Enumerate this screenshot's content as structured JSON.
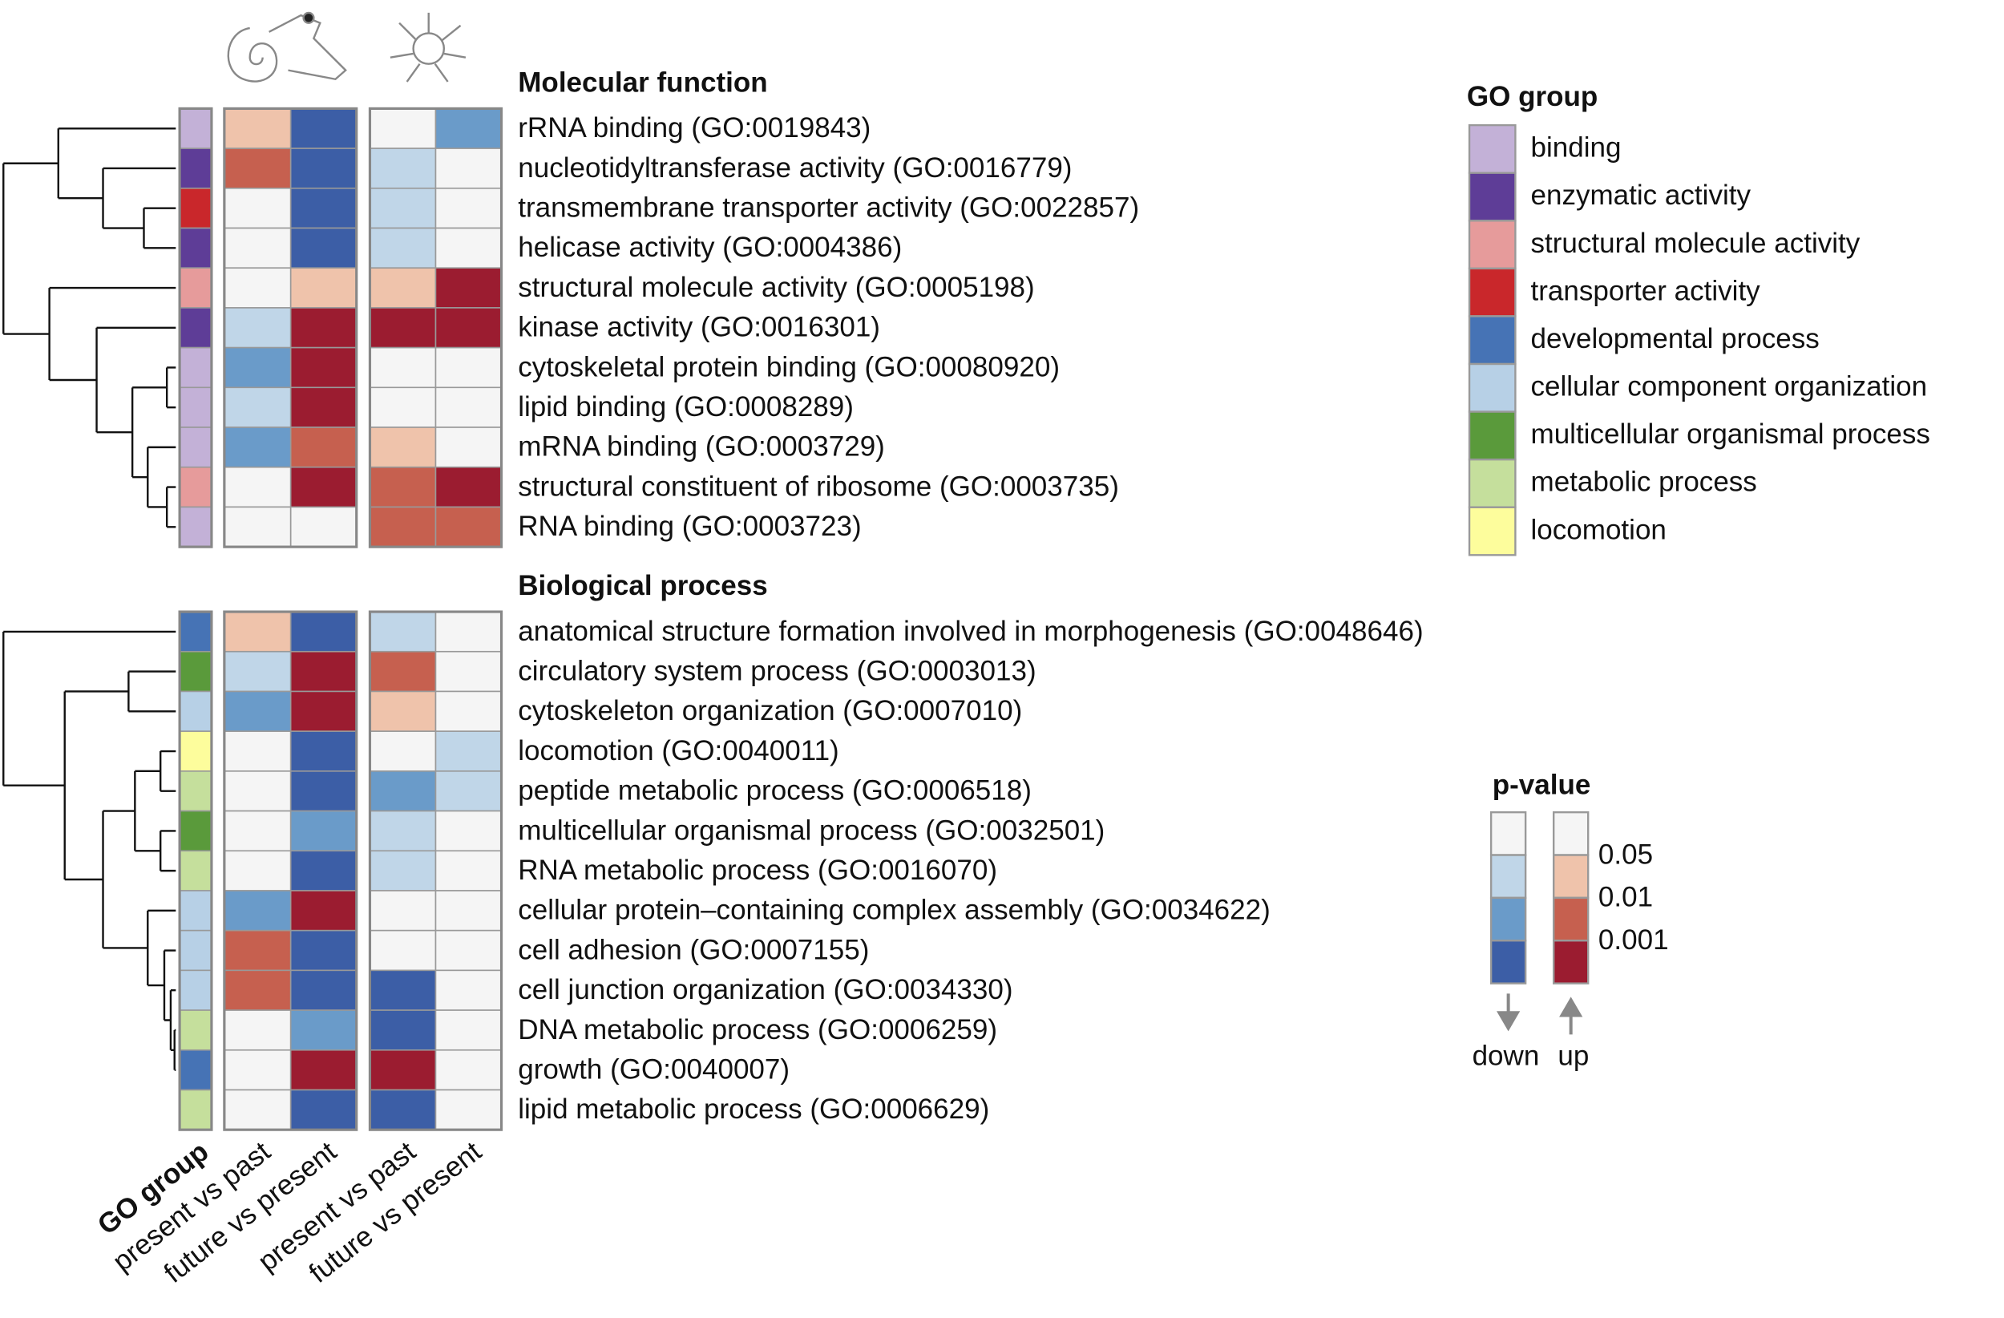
{
  "chart_data": {
    "type": "heatmap",
    "columns": [
      "GO group",
      "present vs past",
      "future vs present",
      "present vs past",
      "future vs present"
    ],
    "panels": [
      {
        "title": "Molecular function",
        "rows": [
          {
            "label": "rRNA binding (GO:0019843)",
            "group": "binding",
            "cells": [
              [
                "up",
                0.05
              ],
              [
                "down",
                0.001
              ],
              null,
              [
                "down",
                0.01
              ]
            ]
          },
          {
            "label": "nucleotidyltransferase activity (GO:0016779)",
            "group": "enzymatic activity",
            "cells": [
              [
                "up",
                0.01
              ],
              [
                "down",
                0.001
              ],
              [
                "down",
                0.05
              ],
              null
            ]
          },
          {
            "label": "transmembrane transporter activity (GO:0022857)",
            "group": "transporter activity",
            "cells": [
              null,
              [
                "down",
                0.001
              ],
              [
                "down",
                0.05
              ],
              null
            ]
          },
          {
            "label": "helicase activity (GO:0004386)",
            "group": "enzymatic activity",
            "cells": [
              null,
              [
                "down",
                0.001
              ],
              [
                "down",
                0.05
              ],
              null
            ]
          },
          {
            "label": "structural molecule activity (GO:0005198)",
            "group": "structural molecule activity",
            "cells": [
              null,
              [
                "up",
                0.05
              ],
              [
                "up",
                0.05
              ],
              [
                "up",
                0.001
              ]
            ]
          },
          {
            "label": "kinase activity (GO:0016301)",
            "group": "enzymatic activity",
            "cells": [
              [
                "down",
                0.05
              ],
              [
                "up",
                0.001
              ],
              [
                "up",
                0.001
              ],
              [
                "up",
                0.001
              ]
            ]
          },
          {
            "label": "cytoskeletal protein binding (GO:00080920)",
            "group": "binding",
            "cells": [
              [
                "down",
                0.01
              ],
              [
                "up",
                0.001
              ],
              null,
              null
            ]
          },
          {
            "label": "lipid binding (GO:0008289)",
            "group": "binding",
            "cells": [
              [
                "down",
                0.05
              ],
              [
                "up",
                0.001
              ],
              null,
              null
            ]
          },
          {
            "label": "mRNA binding (GO:0003729)",
            "group": "binding",
            "cells": [
              [
                "down",
                0.01
              ],
              [
                "up",
                0.01
              ],
              [
                "up",
                0.05
              ],
              null
            ]
          },
          {
            "label": "structural constituent of ribosome (GO:0003735)",
            "group": "structural molecule activity",
            "cells": [
              null,
              [
                "up",
                0.001
              ],
              [
                "up",
                0.01
              ],
              [
                "up",
                0.001
              ]
            ]
          },
          {
            "label": "RNA binding (GO:0003723)",
            "group": "binding",
            "cells": [
              null,
              null,
              [
                "up",
                0.01
              ],
              [
                "up",
                0.01
              ]
            ]
          }
        ]
      },
      {
        "title": "Biological process",
        "rows": [
          {
            "label": "anatomical structure formation involved in morphogenesis (GO:0048646)",
            "group": "developmental process",
            "cells": [
              [
                "up",
                0.05
              ],
              [
                "down",
                0.001
              ],
              [
                "down",
                0.05
              ],
              null
            ]
          },
          {
            "label": "circulatory system process (GO:0003013)",
            "group": "multicellular organismal process",
            "cells": [
              [
                "down",
                0.05
              ],
              [
                "up",
                0.001
              ],
              [
                "up",
                0.01
              ],
              null
            ]
          },
          {
            "label": "cytoskeleton organization (GO:0007010)",
            "group": "cellular component organization",
            "cells": [
              [
                "down",
                0.01
              ],
              [
                "up",
                0.001
              ],
              [
                "up",
                0.05
              ],
              null
            ]
          },
          {
            "label": "locomotion (GO:0040011)",
            "group": "locomotion",
            "cells": [
              null,
              [
                "down",
                0.001
              ],
              null,
              [
                "down",
                0.05
              ]
            ]
          },
          {
            "label": "peptide metabolic process (GO:0006518)",
            "group": "metabolic process",
            "cells": [
              null,
              [
                "down",
                0.001
              ],
              [
                "down",
                0.01
              ],
              [
                "down",
                0.05
              ]
            ]
          },
          {
            "label": "multicellular organismal process (GO:0032501)",
            "group": "multicellular organismal process",
            "cells": [
              null,
              [
                "down",
                0.01
              ],
              [
                "down",
                0.05
              ],
              null
            ]
          },
          {
            "label": "RNA metabolic process (GO:0016070)",
            "group": "metabolic process",
            "cells": [
              null,
              [
                "down",
                0.001
              ],
              [
                "down",
                0.05
              ],
              null
            ]
          },
          {
            "label": "cellular protein–containing complex assembly (GO:0034622)",
            "group": "cellular component organization",
            "cells": [
              [
                "down",
                0.01
              ],
              [
                "up",
                0.001
              ],
              null,
              null
            ]
          },
          {
            "label": "cell adhesion (GO:0007155)",
            "group": "cellular component organization",
            "cells": [
              [
                "up",
                0.01
              ],
              [
                "down",
                0.001
              ],
              null,
              null
            ]
          },
          {
            "label": "cell junction organization (GO:0034330)",
            "group": "cellular component organization",
            "cells": [
              [
                "up",
                0.01
              ],
              [
                "down",
                0.001
              ],
              [
                "down",
                0.001
              ],
              null
            ]
          },
          {
            "label": "DNA metabolic process (GO:0006259)",
            "group": "metabolic process",
            "cells": [
              null,
              [
                "down",
                0.01
              ],
              [
                "down",
                0.001
              ],
              null
            ]
          },
          {
            "label": "growth (GO:0040007)",
            "group": "developmental process",
            "cells": [
              null,
              [
                "up",
                0.001
              ],
              [
                "up",
                0.001
              ],
              null
            ]
          },
          {
            "label": "lipid metabolic process (GO:0006629)",
            "group": "metabolic process",
            "cells": [
              null,
              [
                "down",
                0.001
              ],
              [
                "down",
                0.001
              ],
              null
            ]
          }
        ]
      }
    ],
    "group_legend": {
      "title": "GO group",
      "groups": [
        {
          "name": "binding",
          "color": "#c3b1d7"
        },
        {
          "name": "enzymatic activity",
          "color": "#5e3d97"
        },
        {
          "name": "structural molecule activity",
          "color": "#e69b9b"
        },
        {
          "name": "transporter activity",
          "color": "#c9272b"
        },
        {
          "name": "developmental process",
          "color": "#4673b5"
        },
        {
          "name": "cellular component organization",
          "color": "#b7d0e6"
        },
        {
          "name": "multicellular organismal process",
          "color": "#5a9a3b"
        },
        {
          "name": "metabolic process",
          "color": "#c5df9c"
        },
        {
          "name": "locomotion",
          "color": "#fdfd9c"
        }
      ]
    },
    "pvalue_legend": {
      "title": "p-value",
      "levels": [
        0.05,
        0.01,
        0.001
      ],
      "directions": [
        "down",
        "up"
      ],
      "colors": {
        "down": [
          "#c0d6e8",
          "#6a9bc9",
          "#3c5ea6"
        ],
        "up": [
          "#efc3ab",
          "#c6604f",
          "#9b1c30"
        ]
      },
      "ns_color": "#f5f5f5"
    }
  }
}
